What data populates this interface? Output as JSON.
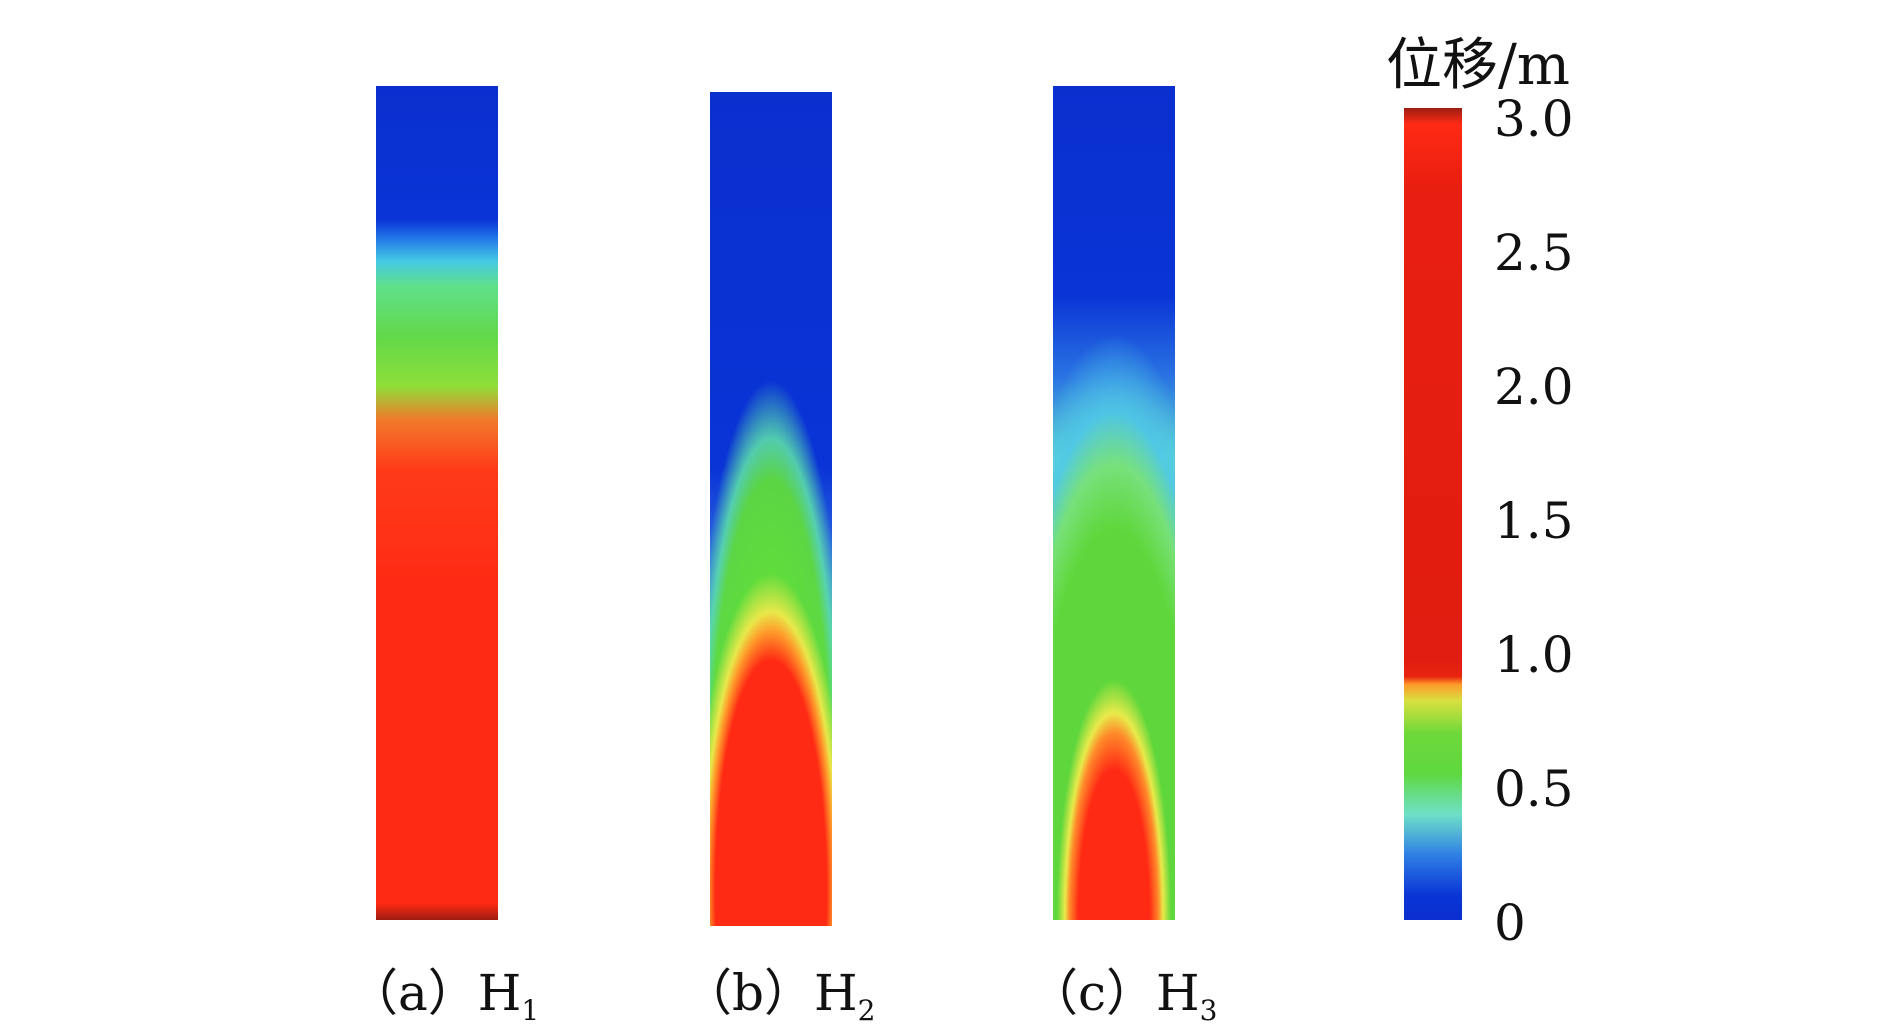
{
  "columns": [
    {
      "id": "a",
      "label_prefix": "（a）H",
      "subscript": "1"
    },
    {
      "id": "b",
      "label_prefix": "（b）H",
      "subscript": "2"
    },
    {
      "id": "c",
      "label_prefix": "（c）H",
      "subscript": "3"
    }
  ],
  "colorbar": {
    "unit_label": "位移/m",
    "ticks": [
      "3.0",
      "2.5",
      "2.0",
      "1.5",
      "1.0",
      "0.5",
      "0"
    ],
    "min": 0,
    "max": 3.0,
    "colors": {
      "low": "#0a2fcf",
      "mid": "#62d84a",
      "high": "#ff2a14"
    }
  }
}
